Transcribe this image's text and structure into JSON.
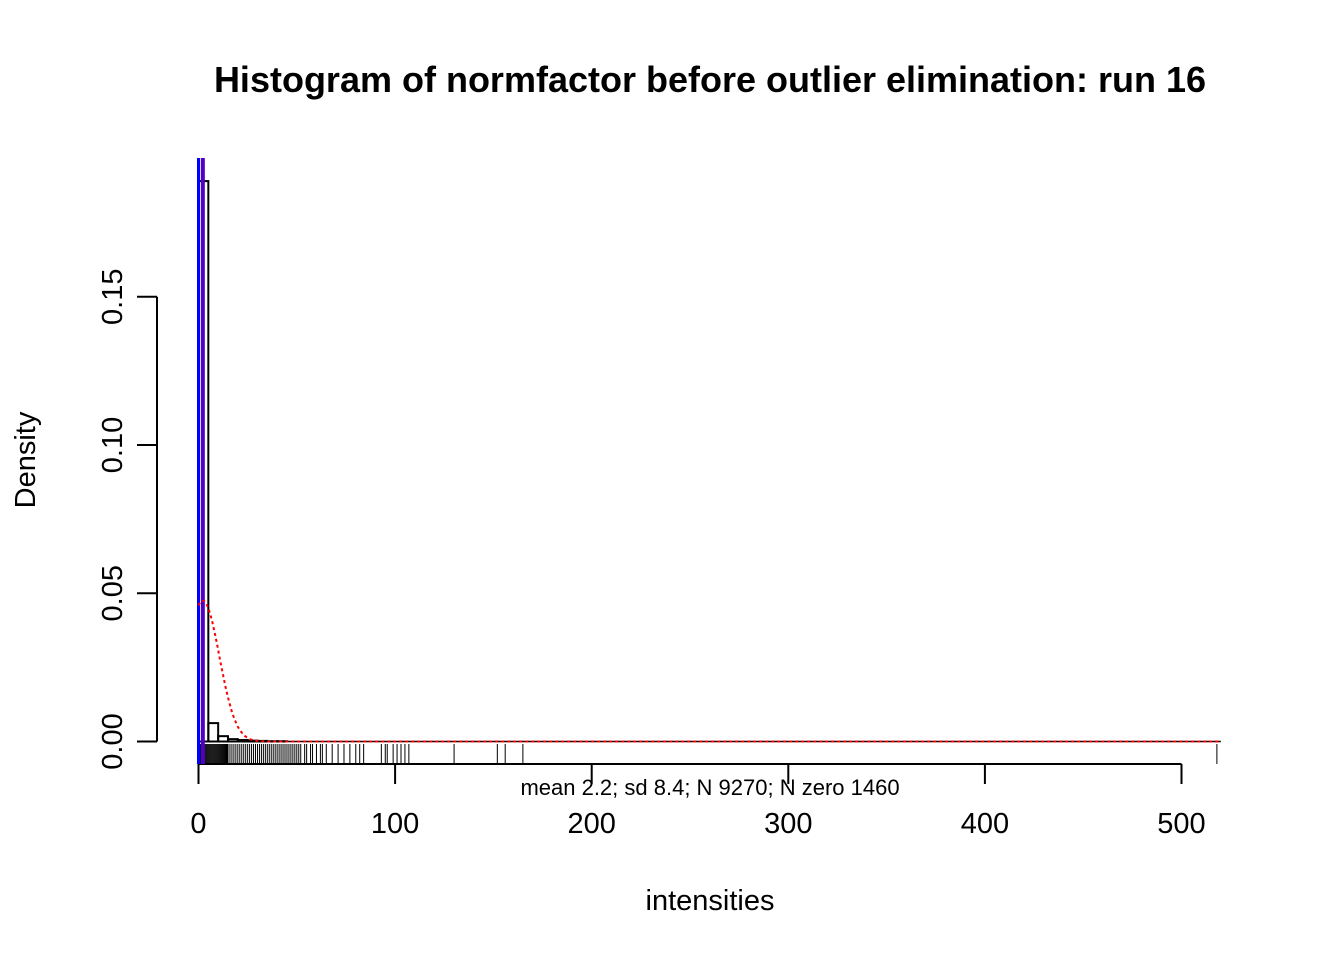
{
  "chart_data": {
    "type": "bar",
    "title": "Histogram of normfactor before outlier elimination: run  16",
    "xlabel": "intensities",
    "ylabel": "Density",
    "xlim": [
      0,
      520
    ],
    "ylim": [
      0,
      0.19
    ],
    "x_ticks": [
      0,
      100,
      200,
      300,
      400,
      500
    ],
    "y_ticks": [
      0.0,
      0.05,
      0.1,
      0.15
    ],
    "y_tick_labels": [
      "0.00",
      "0.05",
      "0.10",
      "0.15"
    ],
    "bins": [
      {
        "x0": 0,
        "x1": 5,
        "density": 0.189
      },
      {
        "x0": 5,
        "x1": 10,
        "density": 0.0062
      },
      {
        "x0": 10,
        "x1": 15,
        "density": 0.0018
      },
      {
        "x0": 15,
        "x1": 20,
        "density": 0.0008
      },
      {
        "x0": 20,
        "x1": 25,
        "density": 0.0005
      },
      {
        "x0": 25,
        "x1": 30,
        "density": 0.0003
      },
      {
        "x0": 30,
        "x1": 35,
        "density": 0.0002
      },
      {
        "x0": 35,
        "x1": 40,
        "density": 0.0001
      },
      {
        "x0": 40,
        "x1": 45,
        "density": 0.0001
      }
    ],
    "normal_curve": {
      "mean": 2.2,
      "sd": 8.4,
      "color": "#ff0000",
      "style": "dotted"
    },
    "mean_line": {
      "x": 2.2,
      "color": "#5000c8"
    },
    "zero_line": {
      "x": 0,
      "color": "#0000ff"
    },
    "rug": [
      0.5,
      1,
      1.5,
      2,
      2.5,
      3,
      3.5,
      4,
      4.5,
      5,
      5.5,
      6,
      6.5,
      7,
      7.5,
      8,
      8.5,
      9,
      9.5,
      10,
      10.5,
      11,
      11.5,
      12,
      12.5,
      13,
      13.5,
      14,
      14.5,
      15,
      16,
      17,
      18,
      19,
      20,
      21,
      22,
      23,
      24,
      25,
      26,
      27,
      28,
      29,
      30,
      31,
      32,
      33,
      34,
      35,
      36,
      37,
      38,
      39,
      40,
      41,
      42,
      43,
      44,
      45,
      46,
      47,
      48,
      49,
      50,
      51,
      52,
      54,
      55,
      57,
      58,
      60,
      62,
      63,
      65,
      68,
      71,
      74,
      77,
      80,
      82,
      84,
      93,
      95,
      96,
      99,
      101,
      103,
      105,
      107,
      130,
      152,
      156,
      165,
      518
    ],
    "annotation": "mean 2.2; sd 8.4; N 9270; N zero 1460"
  }
}
